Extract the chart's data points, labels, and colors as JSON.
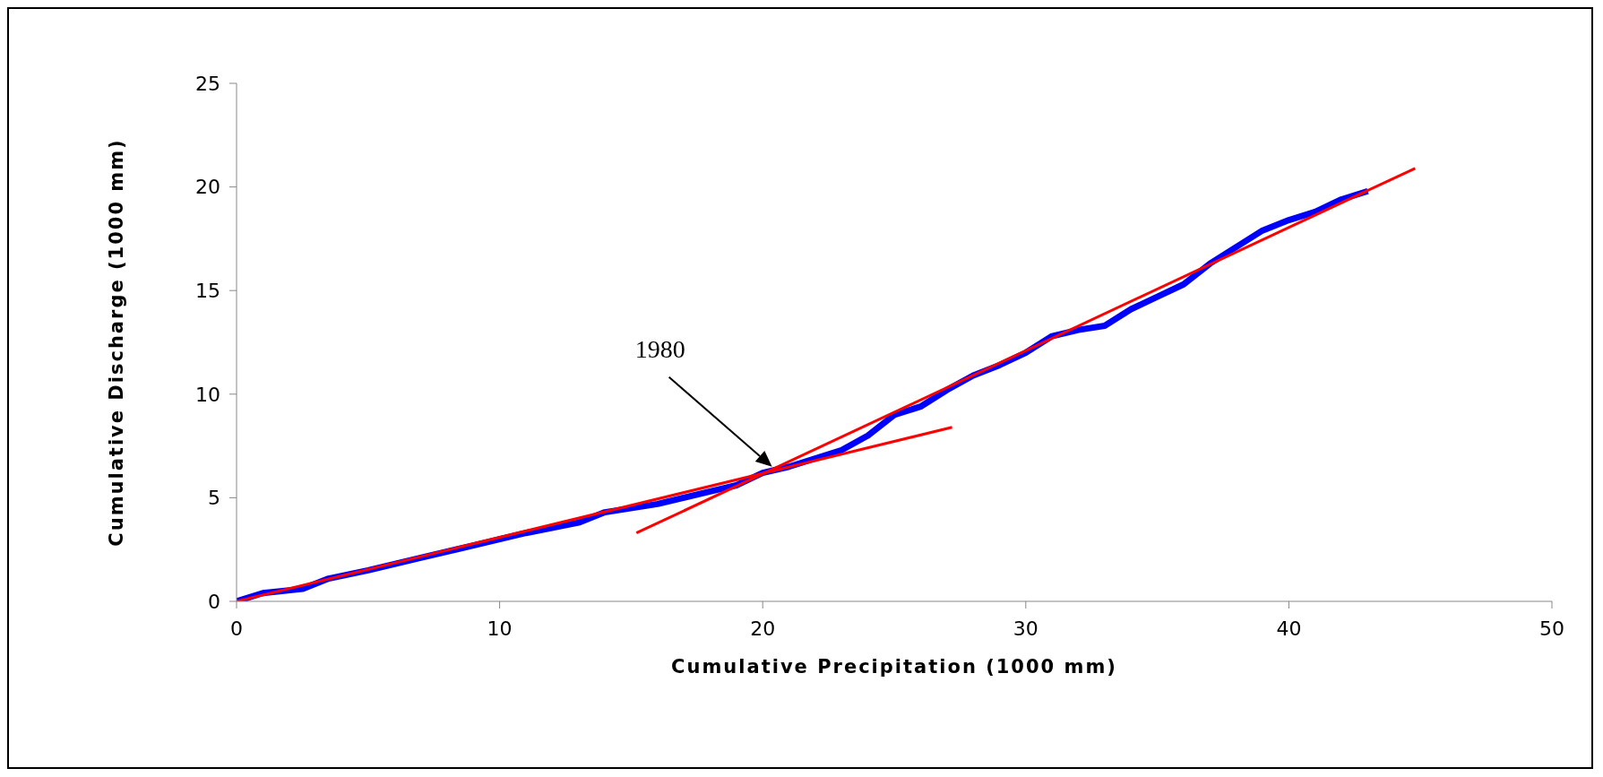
{
  "chart_data": {
    "type": "line",
    "xlabel": "Cumulative Precipitation (1000 mm)",
    "ylabel": "Cumulative Discharge (1000 mm)",
    "xlim": [
      0,
      50
    ],
    "xticks": [
      0,
      10,
      20,
      30,
      40,
      50
    ],
    "ylim": [
      0,
      25
    ],
    "yticks": [
      0,
      5,
      10,
      15,
      20,
      25
    ],
    "grid": false,
    "marker": "none",
    "line_style": "solid",
    "series": [
      {
        "color": "#0000ff",
        "x": [
          0,
          1,
          2.5,
          3.5,
          5,
          7,
          9,
          10,
          11,
          13,
          14,
          16,
          18,
          19,
          20,
          21,
          22,
          23,
          24,
          25,
          26,
          27,
          28,
          29,
          30,
          31,
          32,
          33,
          34,
          35,
          36,
          37,
          38,
          39,
          40,
          41,
          42,
          43
        ],
        "values": [
          0,
          0.4,
          0.6,
          1.1,
          1.5,
          2.1,
          2.7,
          3.0,
          3.3,
          3.8,
          4.3,
          4.7,
          5.3,
          5.6,
          6.2,
          6.5,
          6.9,
          7.3,
          8.0,
          9.0,
          9.4,
          10.2,
          10.9,
          11.4,
          12.0,
          12.8,
          13.1,
          13.3,
          14.1,
          14.7,
          15.3,
          16.3,
          17.1,
          17.9,
          18.4,
          18.8,
          19.4,
          19.8
        ]
      },
      {
        "color": "#ff0000",
        "x": [
          0,
          27.2
        ],
        "values": [
          0,
          8.4
        ]
      },
      {
        "color": "#ff0000",
        "x": [
          15.2,
          44.8
        ],
        "values": [
          3.3,
          20.9
        ]
      }
    ],
    "annotations": [
      "1980"
    ]
  }
}
